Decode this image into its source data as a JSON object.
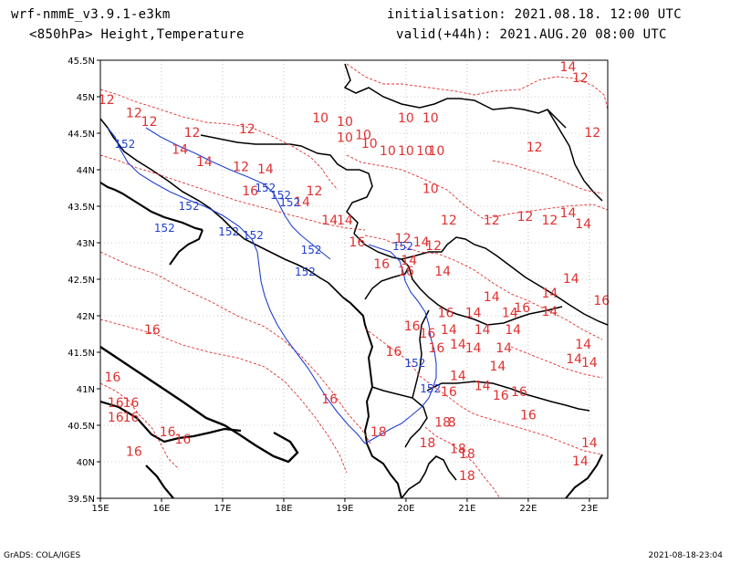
{
  "header": {
    "model": "wrf-nmmE_v3.9.1-e3km",
    "fields": "<850hPa> Height,Temperature",
    "init": "initialisation: 2021.08.18. 12:00 UTC",
    "valid": "valid(+44h): 2021.AUG.20 08:00 UTC"
  },
  "axes": {
    "lon_labels": [
      "15E",
      "16E",
      "17E",
      "18E",
      "19E",
      "20E",
      "21E",
      "22E",
      "23E"
    ],
    "lat_labels": [
      "45.5N",
      "45N",
      "44.5N",
      "44N",
      "43.5N",
      "43N",
      "42.5N",
      "42N",
      "41.5N",
      "41N",
      "40.5N",
      "40N",
      "39.5N"
    ]
  },
  "map_data": {
    "lon_range": [
      15,
      23.3
    ],
    "lat_range": [
      39.5,
      45.5
    ],
    "grid": true,
    "colors": {
      "temperature": "#e03030",
      "height": "#2040d0",
      "coast": "#000000",
      "grid": "#999999"
    },
    "temperature_labels": [
      {
        "v": "14",
        "lon": 22.65,
        "lat": 45.35
      },
      {
        "v": "12",
        "lon": 22.85,
        "lat": 45.2
      },
      {
        "v": "12",
        "lon": 15.1,
        "lat": 44.9
      },
      {
        "v": "12",
        "lon": 15.55,
        "lat": 44.72
      },
      {
        "v": "12",
        "lon": 15.8,
        "lat": 44.6
      },
      {
        "v": "10",
        "lon": 18.6,
        "lat": 44.65
      },
      {
        "v": "10",
        "lon": 19.0,
        "lat": 44.6
      },
      {
        "v": "10",
        "lon": 20.0,
        "lat": 44.65
      },
      {
        "v": "10",
        "lon": 20.4,
        "lat": 44.65
      },
      {
        "v": "12",
        "lon": 17.4,
        "lat": 44.5
      },
      {
        "v": "12",
        "lon": 16.5,
        "lat": 44.45
      },
      {
        "v": "12",
        "lon": 22.1,
        "lat": 44.25
      },
      {
        "v": "12",
        "lon": 23.05,
        "lat": 44.45
      },
      {
        "v": "10",
        "lon": 19.0,
        "lat": 44.38
      },
      {
        "v": "10",
        "lon": 19.3,
        "lat": 44.42
      },
      {
        "v": "10",
        "lon": 19.4,
        "lat": 44.3
      },
      {
        "v": "14",
        "lon": 16.3,
        "lat": 44.22
      },
      {
        "v": "10",
        "lon": 19.7,
        "lat": 44.2
      },
      {
        "v": "10",
        "lon": 20.0,
        "lat": 44.2
      },
      {
        "v": "10",
        "lon": 20.3,
        "lat": 44.2
      },
      {
        "v": "10",
        "lon": 20.5,
        "lat": 44.2
      },
      {
        "v": "14",
        "lon": 16.7,
        "lat": 44.05
      },
      {
        "v": "12",
        "lon": 17.3,
        "lat": 43.98
      },
      {
        "v": "14",
        "lon": 17.7,
        "lat": 43.95
      },
      {
        "v": "16",
        "lon": 17.45,
        "lat": 43.65
      },
      {
        "v": "12",
        "lon": 18.5,
        "lat": 43.65
      },
      {
        "v": "10",
        "lon": 20.4,
        "lat": 43.68
      },
      {
        "v": "14",
        "lon": 18.3,
        "lat": 43.5
      },
      {
        "v": "14",
        "lon": 18.75,
        "lat": 43.25
      },
      {
        "v": "14",
        "lon": 19.0,
        "lat": 43.25
      },
      {
        "v": "12",
        "lon": 20.7,
        "lat": 43.25
      },
      {
        "v": "12",
        "lon": 21.4,
        "lat": 43.25
      },
      {
        "v": "12",
        "lon": 21.95,
        "lat": 43.3
      },
      {
        "v": "12",
        "lon": 22.35,
        "lat": 43.25
      },
      {
        "v": "14",
        "lon": 22.65,
        "lat": 43.35
      },
      {
        "v": "14",
        "lon": 22.9,
        "lat": 43.2
      },
      {
        "v": "16",
        "lon": 19.2,
        "lat": 42.95
      },
      {
        "v": "12",
        "lon": 19.95,
        "lat": 43.0
      },
      {
        "v": "14",
        "lon": 20.25,
        "lat": 42.95
      },
      {
        "v": "12",
        "lon": 20.45,
        "lat": 42.9
      },
      {
        "v": "16",
        "lon": 19.6,
        "lat": 42.65
      },
      {
        "v": "14",
        "lon": 20.05,
        "lat": 42.7
      },
      {
        "v": "16",
        "lon": 20.0,
        "lat": 42.55
      },
      {
        "v": "14",
        "lon": 20.6,
        "lat": 42.55
      },
      {
        "v": "14",
        "lon": 22.7,
        "lat": 42.45
      },
      {
        "v": "14",
        "lon": 21.4,
        "lat": 42.2
      },
      {
        "v": "14",
        "lon": 22.35,
        "lat": 42.25
      },
      {
        "v": "16",
        "lon": 23.2,
        "lat": 42.15
      },
      {
        "v": "16",
        "lon": 21.9,
        "lat": 42.05
      },
      {
        "v": "16",
        "lon": 20.65,
        "lat": 41.98
      },
      {
        "v": "14",
        "lon": 21.1,
        "lat": 41.98
      },
      {
        "v": "14",
        "lon": 21.7,
        "lat": 41.98
      },
      {
        "v": "14",
        "lon": 22.35,
        "lat": 42.0
      },
      {
        "v": "16",
        "lon": 15.85,
        "lat": 41.75
      },
      {
        "v": "16",
        "lon": 20.1,
        "lat": 41.8
      },
      {
        "v": "16",
        "lon": 20.35,
        "lat": 41.7
      },
      {
        "v": "14",
        "lon": 20.7,
        "lat": 41.75
      },
      {
        "v": "14",
        "lon": 21.25,
        "lat": 41.75
      },
      {
        "v": "14",
        "lon": 21.75,
        "lat": 41.75
      },
      {
        "v": "16",
        "lon": 19.8,
        "lat": 41.45
      },
      {
        "v": "16",
        "lon": 20.5,
        "lat": 41.5
      },
      {
        "v": "14",
        "lon": 20.85,
        "lat": 41.55
      },
      {
        "v": "14",
        "lon": 21.1,
        "lat": 41.5
      },
      {
        "v": "14",
        "lon": 21.6,
        "lat": 41.5
      },
      {
        "v": "14",
        "lon": 22.9,
        "lat": 41.55
      },
      {
        "v": "14",
        "lon": 22.75,
        "lat": 41.35
      },
      {
        "v": "14",
        "lon": 23.0,
        "lat": 41.3
      },
      {
        "v": "14",
        "lon": 21.5,
        "lat": 41.25
      },
      {
        "v": "14",
        "lon": 20.85,
        "lat": 41.12
      },
      {
        "v": "16",
        "lon": 15.2,
        "lat": 41.1
      },
      {
        "v": "14",
        "lon": 21.25,
        "lat": 40.98
      },
      {
        "v": "16",
        "lon": 21.55,
        "lat": 40.85
      },
      {
        "v": "16",
        "lon": 21.85,
        "lat": 40.9
      },
      {
        "v": "16",
        "lon": 20.7,
        "lat": 40.9
      },
      {
        "v": "16",
        "lon": 18.75,
        "lat": 40.8
      },
      {
        "v": "16",
        "lon": 15.25,
        "lat": 40.75
      },
      {
        "v": "16",
        "lon": 15.5,
        "lat": 40.75
      },
      {
        "v": "16",
        "lon": 15.25,
        "lat": 40.55
      },
      {
        "v": "16",
        "lon": 15.5,
        "lat": 40.55
      },
      {
        "v": "16",
        "lon": 22.0,
        "lat": 40.58
      },
      {
        "v": "18",
        "lon": 20.6,
        "lat": 40.48
      },
      {
        "v": "8",
        "lon": 20.75,
        "lat": 40.48
      },
      {
        "v": "18",
        "lon": 19.55,
        "lat": 40.35
      },
      {
        "v": "16",
        "lon": 16.1,
        "lat": 40.35
      },
      {
        "v": "16",
        "lon": 16.35,
        "lat": 40.25
      },
      {
        "v": "16",
        "lon": 15.55,
        "lat": 40.08
      },
      {
        "v": "18",
        "lon": 20.35,
        "lat": 40.2
      },
      {
        "v": "18",
        "lon": 20.85,
        "lat": 40.12
      },
      {
        "v": "18",
        "lon": 21.0,
        "lat": 40.05
      },
      {
        "v": "14",
        "lon": 23.0,
        "lat": 40.2
      },
      {
        "v": "14",
        "lon": 22.85,
        "lat": 39.95
      },
      {
        "v": "18",
        "lon": 21.0,
        "lat": 39.75
      }
    ],
    "height_labels": [
      {
        "v": "152",
        "lon": 15.4,
        "lat": 44.3
      },
      {
        "v": "152",
        "lon": 17.7,
        "lat": 43.7
      },
      {
        "v": "152",
        "lon": 17.95,
        "lat": 43.6
      },
      {
        "v": "152",
        "lon": 18.1,
        "lat": 43.5
      },
      {
        "v": "152",
        "lon": 16.45,
        "lat": 43.45
      },
      {
        "v": "152",
        "lon": 17.1,
        "lat": 43.1
      },
      {
        "v": "152",
        "lon": 16.05,
        "lat": 43.15
      },
      {
        "v": "152",
        "lon": 17.5,
        "lat": 43.05
      },
      {
        "v": "152",
        "lon": 18.45,
        "lat": 42.85
      },
      {
        "v": "152",
        "lon": 18.35,
        "lat": 42.55
      },
      {
        "v": "152",
        "lon": 19.95,
        "lat": 42.9
      },
      {
        "v": "152",
        "lon": 20.15,
        "lat": 41.3
      },
      {
        "v": "152",
        "lon": 20.4,
        "lat": 40.95
      }
    ]
  }
}
